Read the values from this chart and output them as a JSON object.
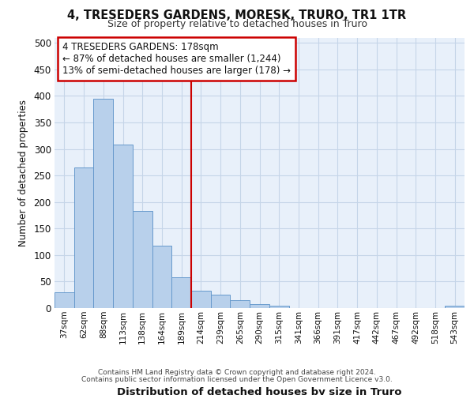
{
  "title1": "4, TRESEDERS GARDENS, MORESK, TRURO, TR1 1TR",
  "title2": "Size of property relative to detached houses in Truro",
  "xlabel": "Distribution of detached houses by size in Truro",
  "ylabel": "Number of detached properties",
  "categories": [
    "37sqm",
    "62sqm",
    "88sqm",
    "113sqm",
    "138sqm",
    "164sqm",
    "189sqm",
    "214sqm",
    "239sqm",
    "265sqm",
    "290sqm",
    "315sqm",
    "341sqm",
    "366sqm",
    "391sqm",
    "417sqm",
    "442sqm",
    "467sqm",
    "492sqm",
    "518sqm",
    "543sqm"
  ],
  "values": [
    30,
    265,
    395,
    308,
    183,
    118,
    58,
    33,
    25,
    15,
    7,
    5,
    0,
    0,
    0,
    0,
    0,
    0,
    0,
    0,
    5
  ],
  "bar_color": "#b8d0eb",
  "bar_edge_color": "#6699cc",
  "bg_color": "#e8f0fa",
  "grid_color": "#c5d5e8",
  "red_line_x": 6.5,
  "annotation_title": "4 TRESEDERS GARDENS: 178sqm",
  "annotation_line1": "← 87% of detached houses are smaller (1,244)",
  "annotation_line2": "13% of semi-detached houses are larger (178) →",
  "annotation_box_color": "#ffffff",
  "annotation_border_color": "#cc0000",
  "footer1": "Contains HM Land Registry data © Crown copyright and database right 2024.",
  "footer2": "Contains public sector information licensed under the Open Government Licence v3.0.",
  "ylim": [
    0,
    510
  ],
  "yticks": [
    0,
    50,
    100,
    150,
    200,
    250,
    300,
    350,
    400,
    450,
    500
  ]
}
